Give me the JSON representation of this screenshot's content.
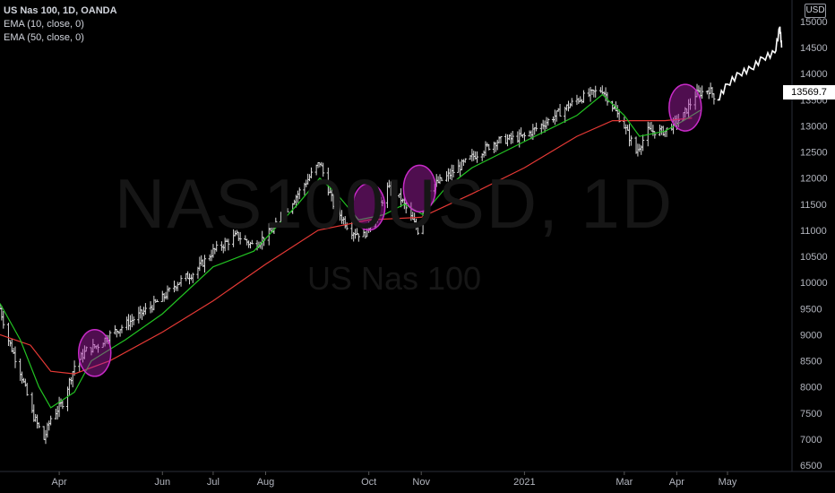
{
  "legend": {
    "symbol": "US Nas 100, 1D, OANDA",
    "ema10": "EMA (10, close, 0)",
    "ema50": "EMA (50, close, 0)"
  },
  "watermark": {
    "ticker": "NAS100USD, 1D",
    "name": "US Nas 100"
  },
  "currency_badge": "USD",
  "last_price": "13569.7",
  "colors": {
    "background": "#000000",
    "bars": "#d9d9d9",
    "ema10": "#22c322",
    "ema50": "#e53935",
    "highlight": "#b01fb0",
    "price_tag": "#ffffff"
  },
  "chart_data": {
    "type": "line",
    "title": "US Nas 100, 1D, OANDA",
    "instrument": "NAS100USD",
    "chart_style": "ohlc bars with EMA overlays and projected path",
    "ylim": [
      6500,
      15000
    ],
    "y_ticks": [
      6500,
      7000,
      7500,
      8000,
      8500,
      9000,
      9500,
      10000,
      10500,
      11000,
      11500,
      12000,
      12500,
      13000,
      13500,
      14000,
      14500,
      15000
    ],
    "x_tick_labels": [
      "Apr",
      "Jun",
      "Jul",
      "Aug",
      "Oct",
      "Nov",
      "2021",
      "Mar",
      "Apr",
      "May"
    ],
    "x_tick_dates": [
      "2020-04-01",
      "2020-06-01",
      "2020-07-01",
      "2020-08-01",
      "2020-10-01",
      "2020-11-01",
      "2021-01-01",
      "2021-03-01",
      "2021-04-01",
      "2021-05-01"
    ],
    "x_range": [
      "2020-02-26",
      "2021-06-06"
    ],
    "series": [
      {
        "name": "US Nas 100",
        "x": [
          "2020-02-26",
          "2020-03-02",
          "2020-03-09",
          "2020-03-16",
          "2020-03-23",
          "2020-03-27",
          "2020-04-03",
          "2020-04-10",
          "2020-04-17",
          "2020-04-24",
          "2020-05-01",
          "2020-05-15",
          "2020-06-01",
          "2020-06-10",
          "2020-06-20",
          "2020-07-01",
          "2020-07-15",
          "2020-07-25",
          "2020-08-05",
          "2020-08-20",
          "2020-09-02",
          "2020-09-10",
          "2020-09-20",
          "2020-09-28",
          "2020-10-05",
          "2020-10-12",
          "2020-10-20",
          "2020-10-30",
          "2020-11-05",
          "2020-11-15",
          "2020-12-01",
          "2020-12-15",
          "2021-01-01",
          "2021-01-15",
          "2021-02-01",
          "2021-02-16",
          "2021-03-01",
          "2021-03-08",
          "2021-03-15",
          "2021-03-25",
          "2021-04-05",
          "2021-04-12",
          "2021-04-20",
          "2021-04-25"
        ],
        "values": [
          9500,
          8900,
          8300,
          7500,
          7000,
          7400,
          7700,
          8400,
          8700,
          8800,
          9000,
          9300,
          9700,
          10000,
          10200,
          10600,
          10900,
          10700,
          11000,
          11700,
          12300,
          11500,
          11000,
          10900,
          11300,
          11800,
          11600,
          11000,
          11800,
          12000,
          12400,
          12700,
          12800,
          13100,
          13500,
          13700,
          13000,
          12500,
          12900,
          12900,
          13200,
          13600,
          13700,
          13500
        ]
      },
      {
        "name": "Projected path",
        "x": [
          "2021-04-25",
          "2021-05-01",
          "2021-05-08",
          "2021-05-15",
          "2021-05-22",
          "2021-05-29",
          "2021-06-01",
          "2021-06-02"
        ],
        "values": [
          13500,
          13800,
          14000,
          14100,
          14300,
          14400,
          14900,
          14500
        ]
      },
      {
        "name": "EMA (10, close, 0)",
        "x": [
          "2020-02-26",
          "2020-03-09",
          "2020-03-20",
          "2020-03-27",
          "2020-04-10",
          "2020-04-20",
          "2020-05-10",
          "2020-06-01",
          "2020-07-01",
          "2020-07-25",
          "2020-08-20",
          "2020-09-02",
          "2020-09-12",
          "2020-09-25",
          "2020-10-10",
          "2020-10-22",
          "2020-11-02",
          "2020-11-15",
          "2020-12-01",
          "2021-01-01",
          "2021-02-01",
          "2021-02-16",
          "2021-03-01",
          "2021-03-10",
          "2021-03-25",
          "2021-04-05",
          "2021-04-15"
        ],
        "values": [
          9600,
          8900,
          8000,
          7600,
          7900,
          8500,
          8900,
          9400,
          10300,
          10600,
          11500,
          12000,
          11700,
          11200,
          11300,
          11500,
          11300,
          11800,
          12200,
          12700,
          13200,
          13600,
          13200,
          12800,
          12900,
          13100,
          13300
        ]
      },
      {
        "name": "EMA (50, close, 0)",
        "x": [
          "2020-02-26",
          "2020-03-15",
          "2020-03-27",
          "2020-04-10",
          "2020-05-01",
          "2020-06-01",
          "2020-07-01",
          "2020-08-01",
          "2020-09-01",
          "2020-10-01",
          "2020-11-01",
          "2020-12-01",
          "2021-01-01",
          "2021-02-01",
          "2021-02-22",
          "2021-03-10",
          "2021-03-25",
          "2021-04-10"
        ],
        "values": [
          9000,
          8800,
          8300,
          8250,
          8500,
          9050,
          9650,
          10350,
          11000,
          11200,
          11250,
          11700,
          12200,
          12800,
          13100,
          13100,
          13100,
          13150
        ]
      }
    ],
    "highlight_circles": [
      {
        "x": "2020-04-22",
        "y": 8650
      },
      {
        "x": "2020-10-01",
        "y": 11450
      },
      {
        "x": "2020-10-31",
        "y": 11800
      },
      {
        "x": "2021-04-06",
        "y": 13350
      }
    ],
    "grid": false,
    "legend_position": "top-left"
  }
}
